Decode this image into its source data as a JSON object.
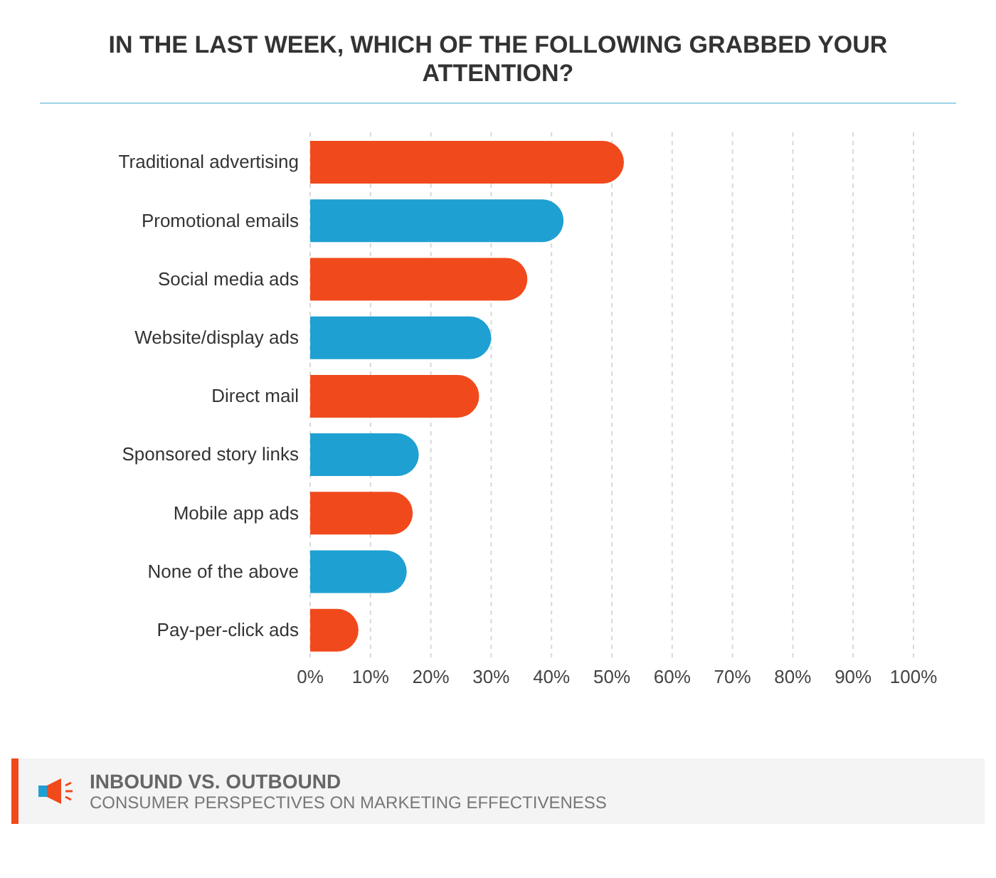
{
  "chart_data": {
    "type": "bar",
    "orientation": "horizontal",
    "title": "IN THE LAST WEEK, WHICH OF THE FOLLOWING GRABBED YOUR ATTENTION?",
    "categories": [
      "Traditional advertising",
      "Promotional emails",
      "Social media ads",
      "Website/display ads",
      "Direct mail",
      "Sponsored story links",
      "Mobile app ads",
      "None of the above",
      "Pay-per-click ads"
    ],
    "values": [
      52,
      42,
      36,
      30,
      28,
      18,
      17,
      16,
      8
    ],
    "colors": [
      "#f04a1c",
      "#1fa0d2",
      "#f04a1c",
      "#1fa0d2",
      "#f04a1c",
      "#1fa0d2",
      "#f04a1c",
      "#1fa0d2",
      "#f04a1c"
    ],
    "xlim": [
      0,
      100
    ],
    "xticks": [
      {
        "value": 0,
        "label": "0%"
      },
      {
        "value": 10,
        "label": "10%"
      },
      {
        "value": 20,
        "label": "20%"
      },
      {
        "value": 30,
        "label": "30%"
      },
      {
        "value": 40,
        "label": "40%"
      },
      {
        "value": 50,
        "label": "50%"
      },
      {
        "value": 60,
        "label": "60%"
      },
      {
        "value": 70,
        "label": "70%"
      },
      {
        "value": 80,
        "label": "80%"
      },
      {
        "value": 90,
        "label": "90%"
      },
      {
        "value": 100,
        "label": "100%"
      }
    ],
    "grid": "x",
    "annotations": [
      "INBOUND VS. OUTBOUND",
      "CONSUMER PERSPECTIVES ON MARKETING EFFECTIVENESS"
    ]
  }
}
